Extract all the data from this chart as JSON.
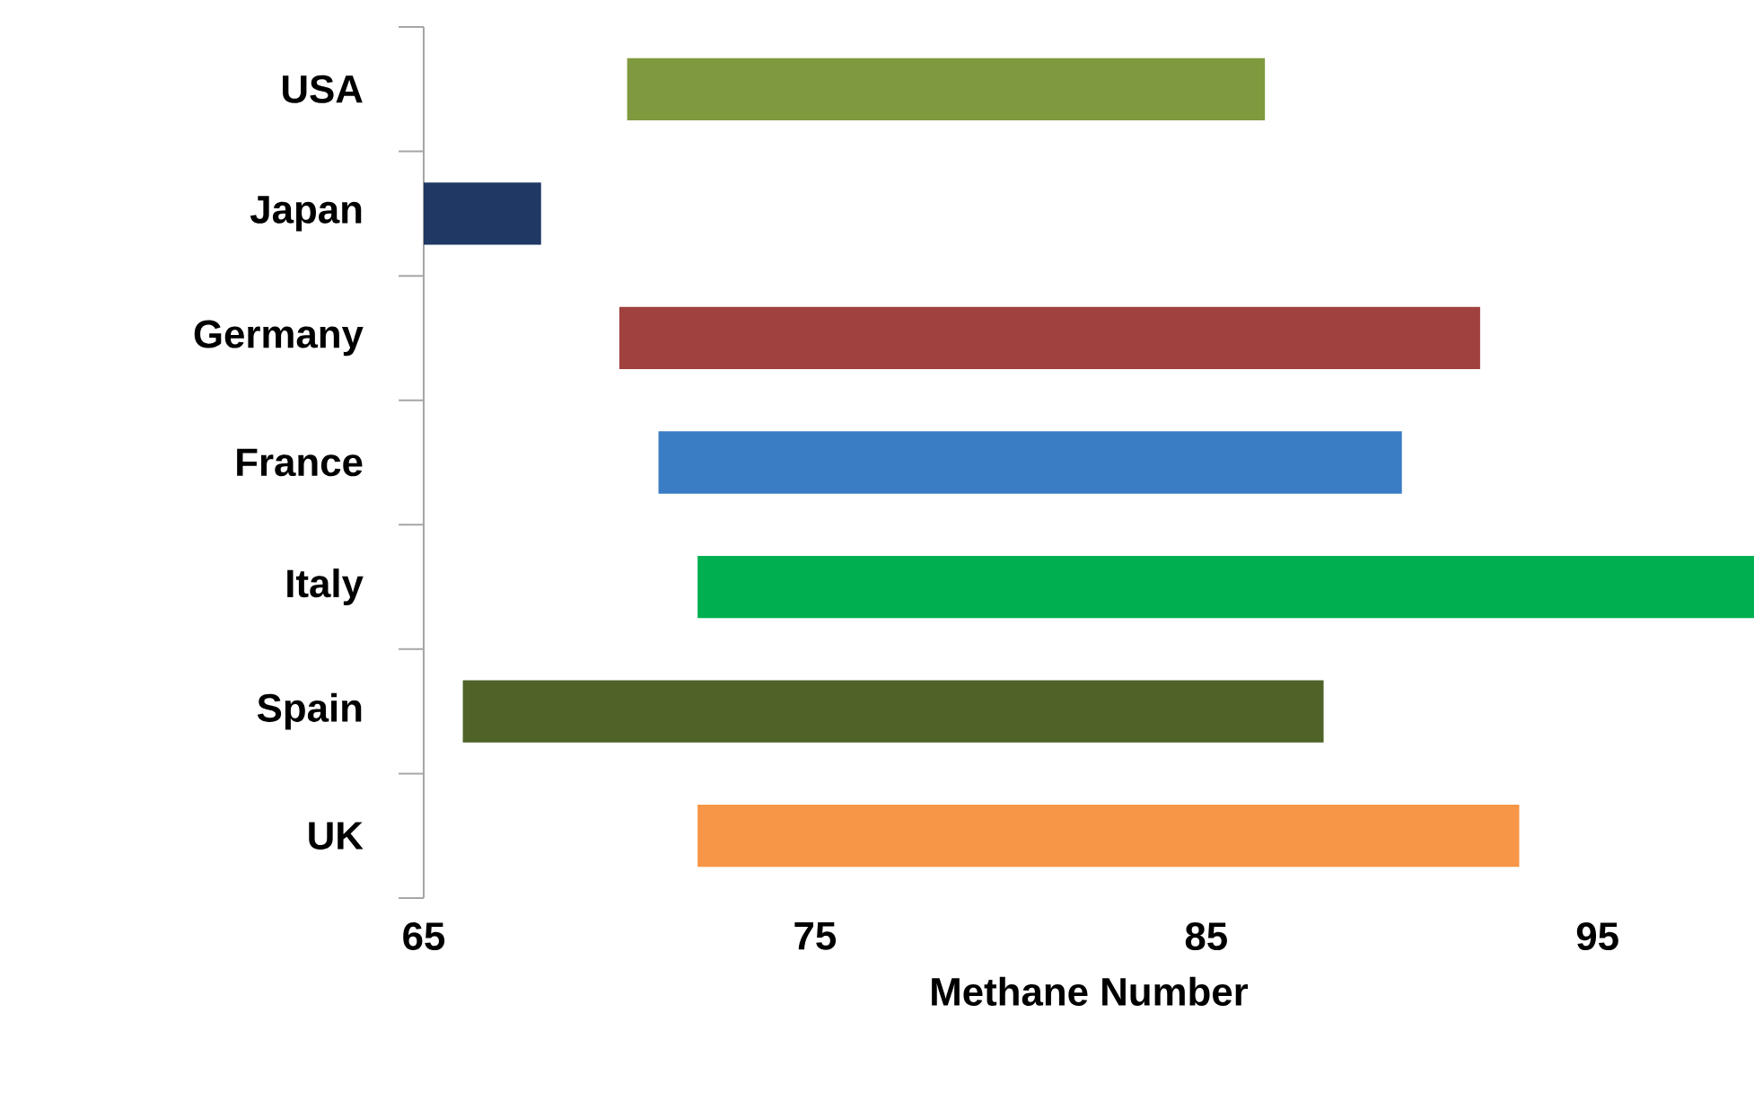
{
  "chart_data": {
    "type": "bar",
    "orientation": "horizontal",
    "xlabel": "Methane Number",
    "categories": [
      "USA",
      "Japan",
      "Germany",
      "France",
      "Italy",
      "Spain",
      "UK"
    ],
    "base": [
      70.2,
      65,
      70,
      71,
      72,
      66,
      72
    ],
    "values": [
      16.3,
      3,
      22,
      19,
      27,
      22,
      21
    ],
    "colors": [
      "#7f9a3e",
      "#1f3864",
      "#a0403f",
      "#3b7dc4",
      "#00b050",
      "#4f6228",
      "#f79646"
    ],
    "xlim": [
      65,
      99
    ],
    "xticks": [
      65,
      75,
      85,
      95
    ],
    "grid": false
  }
}
